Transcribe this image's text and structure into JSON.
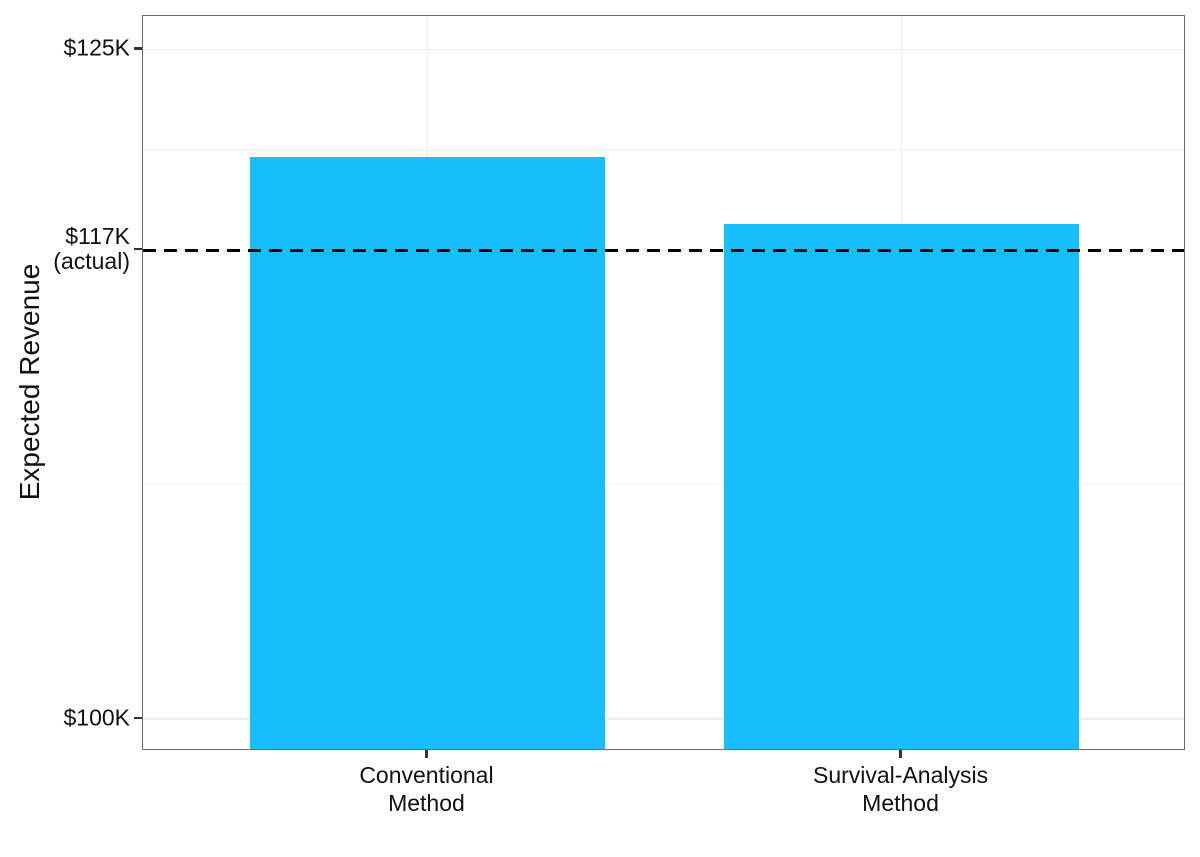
{
  "chart_data": {
    "type": "bar",
    "title": "",
    "ylabel": "Expected Revenue",
    "xlabel": "",
    "unit": "$K",
    "categories": [
      [
        "Conventional",
        "Method"
      ],
      [
        "Survival-Analysis",
        "Method"
      ]
    ],
    "values": [
      121.0,
      118.5
    ],
    "ylim": [
      98.8,
      126.25
    ],
    "y_ticks": [
      {
        "value": 125,
        "label_lines": [
          "$125K"
        ]
      },
      {
        "value": 117.5,
        "label_lines": [
          "$117K",
          "(actual)"
        ]
      },
      {
        "value": 100,
        "label_lines": [
          "$100K"
        ]
      }
    ],
    "y_major_gridlines": [
      100,
      117.5,
      125
    ],
    "y_minor_gridlines": [
      108.75,
      121.25
    ],
    "reference_line": {
      "value": 117.5,
      "meaning": "actual revenue",
      "style": "dashed",
      "color": "#000000"
    },
    "grid": true,
    "legend": false,
    "style": {
      "bar_fill": "#18befa",
      "panel_border": "#6b6b6b",
      "grid_major": "#ededed",
      "grid_minor": "#f6f6f6",
      "reference_line_color": "#000000",
      "text_color": "#111111",
      "background": "#ffffff"
    }
  }
}
